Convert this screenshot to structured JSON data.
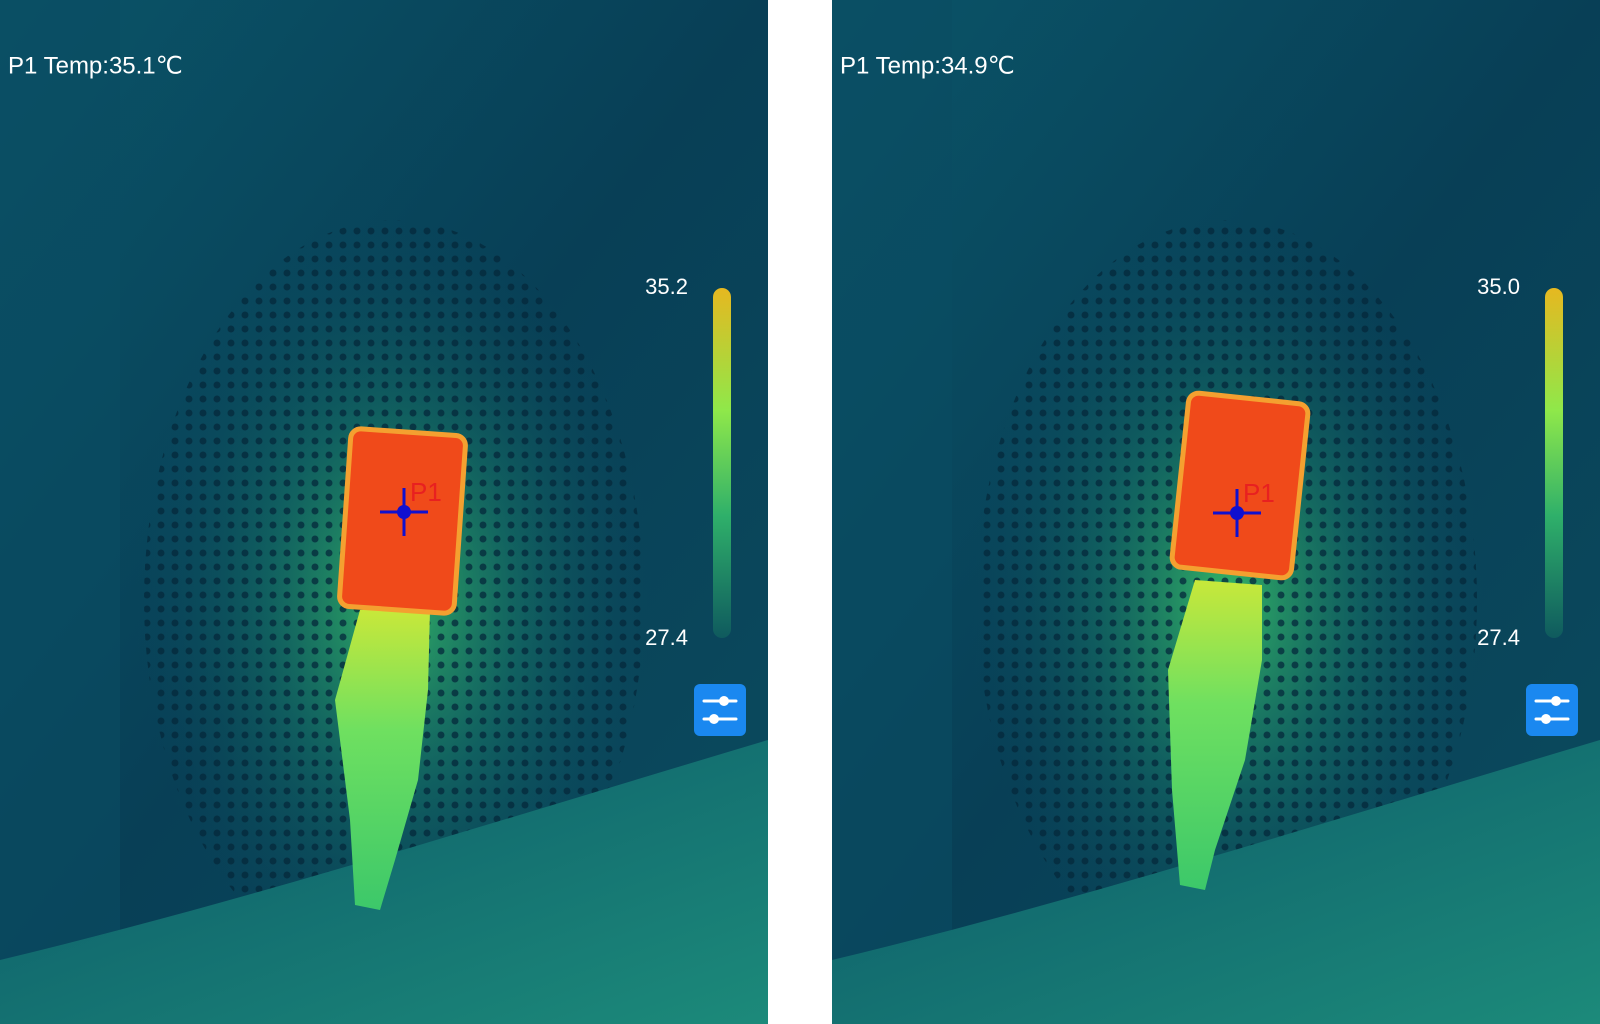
{
  "panels": [
    {
      "readout": "P1 Temp:35.1℃",
      "scale_max": "35.2",
      "scale_min": "27.4",
      "marker": "P1"
    },
    {
      "readout": "P1 Temp:34.9℃",
      "scale_max": "35.0",
      "scale_min": "27.4",
      "marker": "P1"
    }
  ]
}
